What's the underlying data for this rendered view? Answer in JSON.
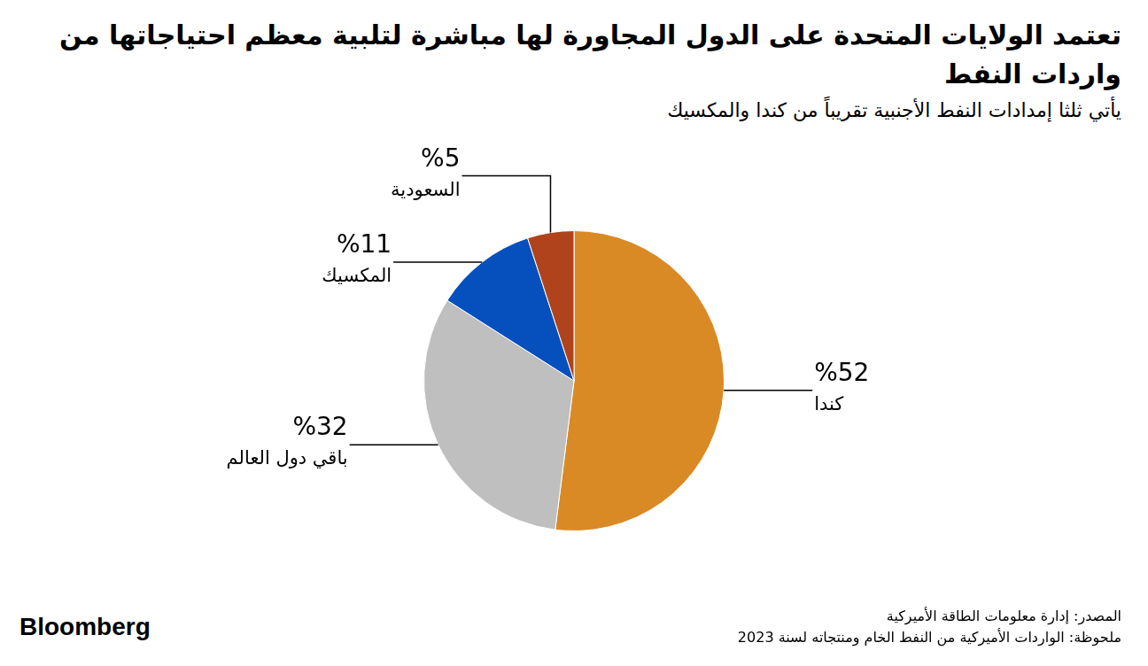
{
  "chart_data": {
    "type": "pie",
    "title": "تعتمد الولايات المتحدة على الدول المجاورة لها مباشرة لتلبية معظم احتياجاتها من واردات النفط",
    "subtitle": "يأتي ثلثا إمدادات النفط الأجنبية تقريباً من كندا والمكسيك",
    "categories": [
      "كندا",
      "باقي دول العالم",
      "المكسيك",
      "السعودية"
    ],
    "values": [
      52,
      32,
      11,
      5
    ],
    "value_labels": [
      "%52",
      "%32",
      "%11",
      "%5"
    ],
    "colors": [
      "#d98a25",
      "#bfbfbf",
      "#0650bd",
      "#b0431c"
    ],
    "data_labels": true,
    "source": "المصدر: إدارة معلومات الطاقة الأميركية",
    "note": "ملحوظة: الواردات الأميركية من النفط الخام ومنتجاته لسنة 2023",
    "brand": "Bloomberg"
  }
}
